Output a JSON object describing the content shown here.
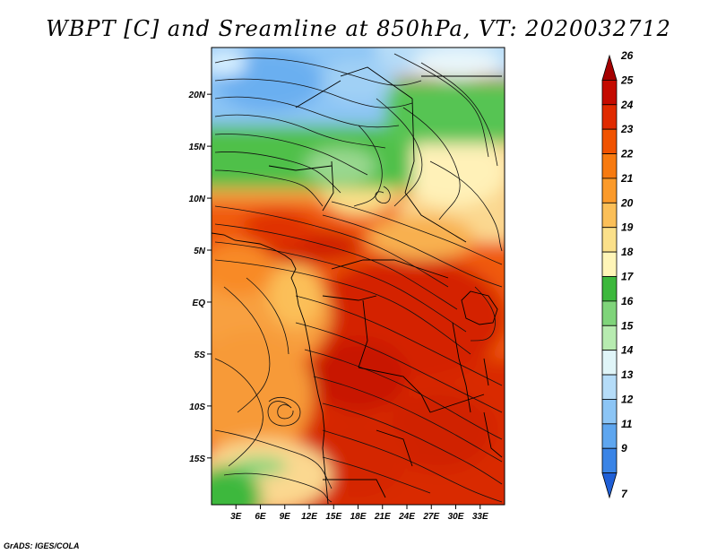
{
  "title": "WBPT [C] and Sreamline at 850hPa, VT: 2020032712",
  "credit": "GrADS: IGES/COLA",
  "map": {
    "lon_range": [
      0,
      36
    ],
    "lat_range": [
      -19.5,
      24.5
    ],
    "lon_ticks": [
      {
        "value": 3,
        "label": "3E"
      },
      {
        "value": 6,
        "label": "6E"
      },
      {
        "value": 9,
        "label": "9E"
      },
      {
        "value": 12,
        "label": "12E"
      },
      {
        "value": 15,
        "label": "15E"
      },
      {
        "value": 18,
        "label": "18E"
      },
      {
        "value": 21,
        "label": "21E"
      },
      {
        "value": 24,
        "label": "24E"
      },
      {
        "value": 27,
        "label": "27E"
      },
      {
        "value": 30,
        "label": "30E"
      },
      {
        "value": 33,
        "label": "33E"
      }
    ],
    "lat_ticks": [
      {
        "value": 20,
        "label": "20N"
      },
      {
        "value": 15,
        "label": "15N"
      },
      {
        "value": 10,
        "label": "10N"
      },
      {
        "value": 5,
        "label": "5N"
      },
      {
        "value": 0,
        "label": "EQ"
      },
      {
        "value": -5,
        "label": "5S"
      },
      {
        "value": -10,
        "label": "10S"
      },
      {
        "value": -15,
        "label": "15S"
      }
    ]
  },
  "colorbar": {
    "levels": [
      {
        "label": "26",
        "color": "#a50000"
      },
      {
        "label": "25",
        "color": "#c40a00"
      },
      {
        "label": "24",
        "color": "#e02a00"
      },
      {
        "label": "23",
        "color": "#f05200"
      },
      {
        "label": "22",
        "color": "#f77a10"
      },
      {
        "label": "21",
        "color": "#fb9a2a"
      },
      {
        "label": "20",
        "color": "#fbbf58"
      },
      {
        "label": "19",
        "color": "#fbe08a"
      },
      {
        "label": "18",
        "color": "#fff5b8"
      },
      {
        "label": "17",
        "color": "#3cb83c"
      },
      {
        "label": "16",
        "color": "#7fd47a"
      },
      {
        "label": "15",
        "color": "#b7ebb0"
      },
      {
        "label": "14",
        "color": "#e0f5f8"
      },
      {
        "label": "13",
        "color": "#b5dcf8"
      },
      {
        "label": "12",
        "color": "#8cc5f5"
      },
      {
        "label": "11",
        "color": "#5ea6ef"
      },
      {
        "label": "9",
        "color": "#3a84e6"
      },
      {
        "label": "7",
        "color": "#1f5fd6"
      }
    ]
  }
}
